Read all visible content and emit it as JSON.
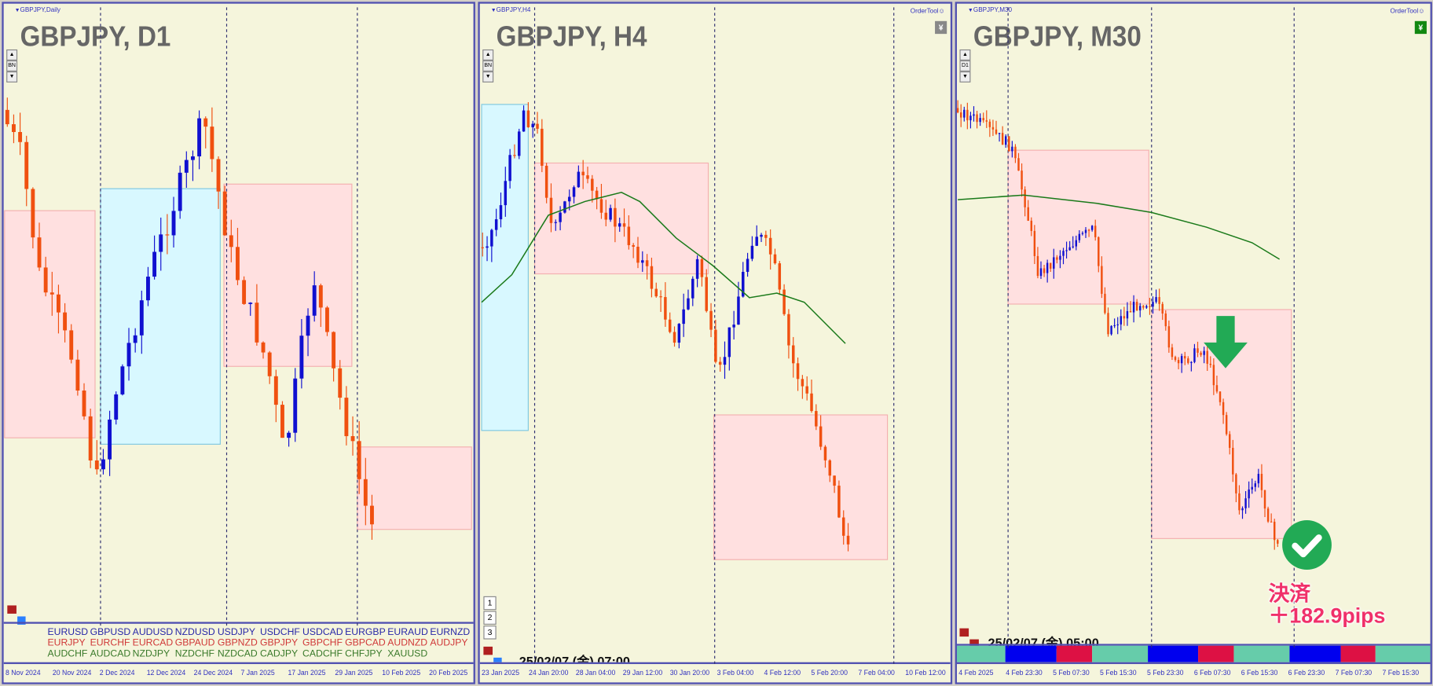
{
  "colors": {
    "up": "#1010d0",
    "down": "#f05010",
    "zone_sell": "#ffe0e0",
    "zone_buy": "#d8f8ff",
    "ma": "#1a7a1a",
    "check": "#22aa55",
    "result": "#f0306a"
  },
  "panels": [
    {
      "small_title": "GBPJPY,Daily",
      "big_title": "GBPJPY, D1",
      "side_buttons": [
        "▲",
        "BN",
        "▼"
      ],
      "x_labels": [
        "8 Nov 2024",
        "20 Nov 2024",
        "2 Dec 2024",
        "12 Dec 2024",
        "24 Dec 2024",
        "7 Jan 2025",
        "17 Jan 2025",
        "29 Jan 2025",
        "10 Feb 2025",
        "20 Feb 2025"
      ],
      "symbols": [
        [
          "EURUSD",
          "GBPUSD",
          "AUDUSD",
          "NZDUSD",
          "USDJPY",
          "USDCHF",
          "USDCAD",
          "EURGBP",
          "EURAUD",
          "EURNZD"
        ],
        [
          "EURJPY",
          "EURCHF",
          "EURCAD",
          "GBPAUD",
          "GBPNZD",
          "GBPJPY",
          "GBPCHF",
          "GBPCAD",
          "AUDNZD",
          "AUDJPY"
        ],
        [
          "AUDCHF",
          "AUDCAD",
          "NZDJPY",
          "NZDCHF",
          "NZDCAD",
          "CADJPY",
          "CADCHF",
          "CHFJPY",
          "XAUUSD"
        ]
      ],
      "symbol_colors": [
        "#2828a8",
        "#d03838",
        "#3a7a2a"
      ]
    },
    {
      "small_title": "GBPJPY,H4",
      "big_title": "GBPJPY, H4",
      "ordertool": "OrderTool☺",
      "yen": "¥",
      "side_buttons": [
        "▲",
        "BN",
        "▼"
      ],
      "num_buttons": [
        "1",
        "2",
        "3"
      ],
      "datetime": "25/02/07 (金) 07:00",
      "x_labels": [
        "23 Jan 2025",
        "24 Jan 20:00",
        "28 Jan 04:00",
        "29 Jan 12:00",
        "30 Jan 20:00",
        "3 Feb 04:00",
        "4 Feb 12:00",
        "5 Feb 20:00",
        "7 Feb 04:00",
        "10 Feb 12:00"
      ]
    },
    {
      "small_title": "GBPJPY,M30",
      "big_title": "GBPJPY, M30",
      "ordertool": "OrderTool☺",
      "yen": "¥",
      "side_buttons": [
        "▲",
        "D1",
        "▼"
      ],
      "datetime": "25/02/07 (金) 05:00",
      "x_labels": [
        "4 Feb 2025",
        "4 Feb 23:30",
        "5 Feb 07:30",
        "5 Feb 15:30",
        "5 Feb 23:30",
        "6 Feb 07:30",
        "6 Feb 15:30",
        "6 Feb 23:30",
        "7 Feb 07:30",
        "7 Feb 15:30"
      ],
      "session_colors": [
        "#66ccaa",
        "#0000ee",
        "#dd1144",
        "#66ccaa",
        "#0000ee",
        "#dd1144",
        "#66ccaa",
        "#0000ee",
        "#dd1144",
        "#66ccaa"
      ],
      "annotation": {
        "line1": "決済",
        "line2": "＋182.9pips",
        "icon": "check-circle-icon",
        "arrow": "down-arrow-icon"
      }
    }
  ]
}
